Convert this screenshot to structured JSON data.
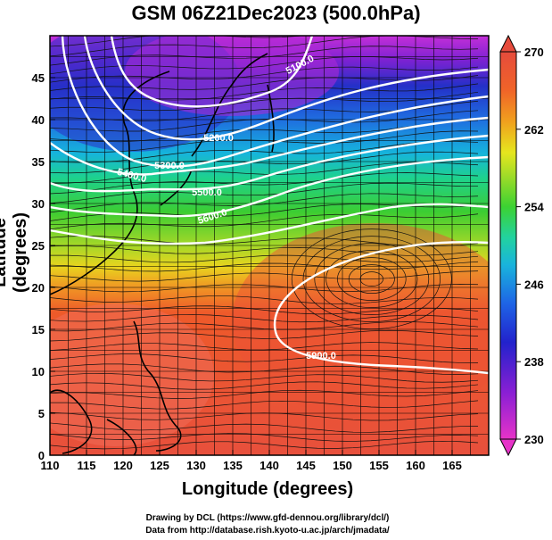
{
  "title": "GSM 06Z21Dec2023 (500.0hPa)",
  "map": {
    "xlabel": "Longitude (degrees)",
    "ylabel": "Latitude  (degrees)",
    "lon_range": [
      110,
      170
    ],
    "lat_range": [
      0,
      50
    ],
    "lon_ticks": [
      "110",
      "115",
      "120",
      "125",
      "130",
      "135",
      "140",
      "145",
      "150",
      "155",
      "160",
      "165"
    ],
    "lat_ticks": [
      "0",
      "5",
      "10",
      "15",
      "20",
      "25",
      "30",
      "35",
      "40",
      "45"
    ],
    "contours": [
      {
        "label": "5100.0"
      },
      {
        "label": "5200.0"
      },
      {
        "label": "5300.0"
      },
      {
        "label": "5400.0"
      },
      {
        "label": "5500.0"
      },
      {
        "label": "5600.0"
      },
      {
        "label": "5700.0"
      },
      {
        "label": "5800.0"
      },
      {
        "label": "5900.0"
      }
    ],
    "field": "temperature (K)",
    "grid": true
  },
  "colorbar": {
    "min": 230,
    "max": 270,
    "tick_labels": [
      "230",
      "238",
      "246",
      "254",
      "262",
      "270"
    ],
    "colors": [
      "#e633c8",
      "#8a1fd4",
      "#2222cc",
      "#1e64e6",
      "#19b4dc",
      "#22d2a0",
      "#3cd232",
      "#a0dc28",
      "#e6e61e",
      "#f0a01e",
      "#f06428",
      "#e64b3c"
    ]
  },
  "credits": {
    "line1": "Drawing by DCL (https://www.gfd-dennou.org/library/dcl/)",
    "line2": "Data from http://database.rish.kyoto-u.ac.jp/arch/jmadata/"
  }
}
